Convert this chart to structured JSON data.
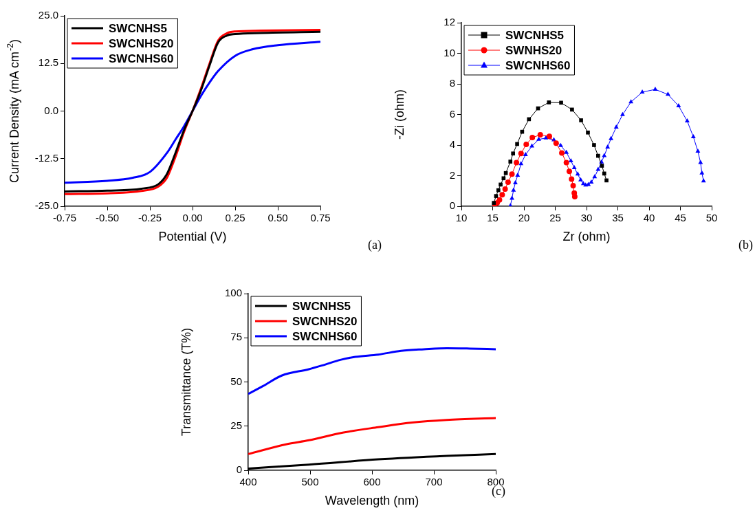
{
  "chart_data": [
    {
      "type": "line",
      "xlabel": "Potential (V)",
      "ylabel": "Current Density (mA cm$^{-2}$)",
      "xlim": [
        -0.75,
        0.75
      ],
      "ylim": [
        -25,
        25
      ],
      "xticks": [
        {
          "value": -0.75,
          "label": "-0.75"
        },
        {
          "value": -0.5,
          "label": "-0.50"
        },
        {
          "value": -0.25,
          "label": "-0.25"
        },
        {
          "value": 0,
          "label": "0.00"
        },
        {
          "value": 0.25,
          "label": "0.25"
        },
        {
          "value": 0.5,
          "label": "0.50"
        },
        {
          "value": 0.75,
          "label": "0.75"
        }
      ],
      "yticks": [
        {
          "value": -25,
          "label": "-25.0"
        },
        {
          "value": -12.5,
          "label": "-12.5"
        },
        {
          "value": 0,
          "label": "0.0"
        },
        {
          "value": 12.5,
          "label": "12.5"
        },
        {
          "value": 25,
          "label": "25.0"
        }
      ],
      "legend": "top left",
      "marker": "none",
      "annotations": [
        "(a)"
      ],
      "series": [
        {
          "name": "SWCNHS5",
          "color": "#000000",
          "x": [
            -0.75,
            -0.5,
            -0.3,
            -0.2,
            -0.15,
            -0.1,
            -0.05,
            0,
            0.05,
            0.1,
            0.15,
            0.2,
            0.25,
            0.4,
            0.75
          ],
          "values": [
            -21.1,
            -20.9,
            -20.4,
            -19.2,
            -16.5,
            -11,
            -5,
            0,
            5.5,
            12,
            18,
            19.8,
            20.2,
            20.5,
            20.8
          ]
        },
        {
          "name": "SWCNHS20",
          "color": "#ff0000",
          "x": [
            -0.75,
            -0.5,
            -0.3,
            -0.2,
            -0.15,
            -0.1,
            -0.05,
            0,
            0.05,
            0.1,
            0.15,
            0.2,
            0.25,
            0.4,
            0.75
          ],
          "values": [
            -21.8,
            -21.6,
            -21,
            -19.8,
            -17.5,
            -12,
            -5.5,
            0,
            6,
            12.5,
            18.5,
            20.4,
            20.9,
            21.1,
            21.3
          ]
        },
        {
          "name": "SWCNHS60",
          "color": "#0000ff",
          "x": [
            -0.75,
            -0.5,
            -0.35,
            -0.25,
            -0.15,
            -0.1,
            -0.05,
            0,
            0.05,
            0.1,
            0.15,
            0.25,
            0.35,
            0.5,
            0.75
          ],
          "values": [
            -18.8,
            -18.3,
            -17.5,
            -16,
            -11,
            -7.5,
            -4,
            0,
            4,
            7.5,
            10.5,
            14.5,
            16.2,
            17.3,
            18.2
          ]
        }
      ]
    },
    {
      "type": "line",
      "xlabel": "Zr (ohm)",
      "ylabel": "-Zi (ohm)",
      "xlim": [
        10,
        50
      ],
      "ylim": [
        0,
        12
      ],
      "xticks": [
        10,
        15,
        20,
        25,
        30,
        35,
        40,
        45,
        50
      ],
      "yticks": [
        0,
        2,
        4,
        6,
        8,
        10,
        12
      ],
      "legend": "top left",
      "annotations": [
        "(b)"
      ],
      "series": [
        {
          "name": "SWCNHS5",
          "color": "#000000",
          "marker": "square",
          "x": [
            15.18,
            15.54,
            15.91,
            16.27,
            16.74,
            17.1,
            17.83,
            18.26,
            18.91,
            19.71,
            20.8,
            22.25,
            23.99,
            25.94,
            27.68,
            29.13,
            30.22,
            31.2,
            31.85,
            32.46,
            32.83,
            33.19
          ],
          "values": [
            0.22,
            0.67,
            1.05,
            1.42,
            1.83,
            2.17,
            2.92,
            3.45,
            4.07,
            4.87,
            5.69,
            6.4,
            6.79,
            6.77,
            6.32,
            5.62,
            4.82,
            4,
            3.3,
            2.65,
            2.14,
            1.69
          ]
        },
        {
          "name": "SWNHS20",
          "color": "#ff0000",
          "marker": "circle",
          "x": [
            15.36,
            15.72,
            16.09,
            16.52,
            16.99,
            17.46,
            18.08,
            18.8,
            19.53,
            20.36,
            21.34,
            22.61,
            24.06,
            25.14,
            26.05,
            26.78,
            27.25,
            27.61,
            27.86,
            28.04,
            28.12
          ],
          "values": [
            0.12,
            0.22,
            0.42,
            0.75,
            1.12,
            1.57,
            2.1,
            2.85,
            3.45,
            4.04,
            4.49,
            4.67,
            4.57,
            4.12,
            3.48,
            2.85,
            2.28,
            1.77,
            1.35,
            0.87,
            0.63
          ]
        },
        {
          "name": "SWCNHS60",
          "color": "#0000ff",
          "marker": "triangle",
          "x": [
            17.83,
            18.08,
            18.33,
            18.62,
            18.99,
            19.53,
            20.25,
            21.27,
            22.36,
            23.51,
            24.78,
            25.87,
            26.78,
            27.5,
            28.04,
            28.59,
            29.06,
            29.49,
            29.86,
            30.29,
            30.76,
            31.3,
            31.85,
            32.39,
            32.83,
            33.37,
            33.91,
            34.75,
            35.76,
            37.1,
            38.91,
            40.98,
            43.01,
            44.71,
            46.09,
            47.07,
            47.79,
            48.22,
            48.44,
            48.7
          ],
          "values": [
            0.03,
            0.52,
            1.05,
            1.53,
            2.02,
            2.77,
            3.37,
            3.93,
            4.37,
            4.46,
            4.34,
            3.97,
            3.52,
            2.97,
            2.52,
            2.1,
            1.72,
            1.47,
            1.38,
            1.42,
            1.57,
            1.92,
            2.4,
            2.89,
            3.3,
            3.87,
            4.42,
            5.17,
            5.99,
            6.82,
            7.46,
            7.64,
            7.31,
            6.56,
            5.57,
            4.54,
            3.6,
            2.85,
            2.17,
            1.65
          ]
        }
      ]
    },
    {
      "type": "line",
      "xlabel": "Wavelength (nm)",
      "ylabel": "Transmittance (T%)",
      "xlim": [
        400,
        800
      ],
      "ylim": [
        0,
        100
      ],
      "xticks": [
        400,
        500,
        600,
        700,
        800
      ],
      "yticks": [
        0,
        25,
        50,
        75,
        100
      ],
      "legend": "top left",
      "marker": "none",
      "annotations": [
        "(c)"
      ],
      "series": [
        {
          "name": "SWCNHS5",
          "color": "#000000",
          "x": [
            400,
            498,
            610,
            721,
            800
          ],
          "values": [
            1,
            3.2,
            6.2,
            8.2,
            9.2
          ]
        },
        {
          "name": "SWCNHS20",
          "color": "#ff0000",
          "x": [
            400,
            461,
            498,
            554,
            610,
            665,
            721,
            800
          ],
          "values": [
            9.2,
            14.7,
            17,
            21.4,
            24.4,
            27,
            28.5,
            29.6
          ]
        },
        {
          "name": "SWCNHS60",
          "color": "#0000ff",
          "x": [
            400,
            424,
            454,
            498,
            520,
            550,
            573,
            610,
            647,
            684,
            721,
            758,
            800
          ],
          "values": [
            43.2,
            47.7,
            53.6,
            57.2,
            59.4,
            62.6,
            64.2,
            65.5,
            67.6,
            68.5,
            69.1,
            68.9,
            68.5
          ]
        }
      ]
    }
  ]
}
